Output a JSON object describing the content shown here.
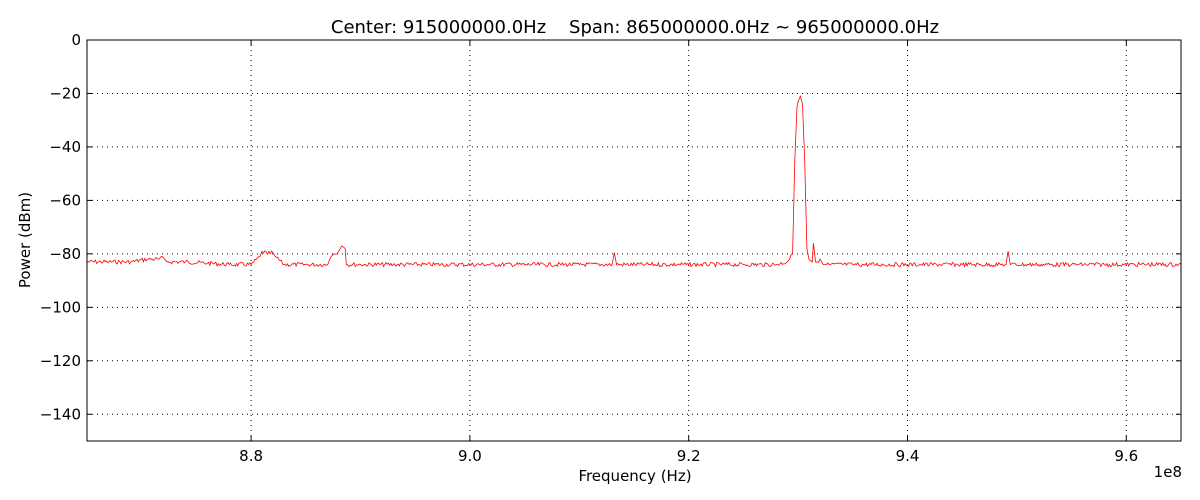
{
  "chart_data": {
    "type": "line",
    "title": "Center: 915000000.0Hz    Span: 865000000.0Hz ~ 965000000.0Hz",
    "xlabel": "Frequency (Hz)",
    "ylabel": "Power (dBm)",
    "x_offset_label": "1e8",
    "xlim": [
      865000000,
      965000000
    ],
    "ylim": [
      -150,
      0
    ],
    "x_ticks": [
      880000000,
      900000000,
      920000000,
      940000000,
      960000000
    ],
    "x_tick_labels": [
      "8.8",
      "9.0",
      "9.2",
      "9.4",
      "9.6"
    ],
    "y_ticks": [
      0,
      -20,
      -40,
      -60,
      -80,
      -100,
      -120,
      -140
    ],
    "y_tick_labels": [
      "0",
      "−20",
      "−40",
      "−60",
      "−80",
      "−100",
      "−120",
      "−140"
    ],
    "grid": true,
    "grid_style": "dotted",
    "line_color": "#ff0000",
    "series": [
      {
        "x": [
          865000000,
          867000000,
          869000000,
          870500000,
          871500000,
          872000000,
          872300000,
          874000000,
          876000000,
          878000000,
          880000000,
          880800000,
          881000000,
          881500000,
          882000000,
          882200000,
          883000000,
          885000000,
          887000000,
          887300000,
          887600000,
          888000000,
          888300000,
          888600000,
          888700000,
          890000000,
          893000000,
          896000000,
          900000000,
          905000000,
          910000000,
          913000000,
          913200000,
          913400000,
          916000000,
          920000000,
          925000000,
          928000000,
          929000000,
          929500000,
          929700000,
          929900000,
          930000000,
          930200000,
          930400000,
          930600000,
          930800000,
          931000000,
          931300000,
          931400000,
          931600000,
          932000000,
          932300000,
          932600000,
          935000000,
          940000000,
          945000000,
          949000000,
          949200000,
          949400000,
          952000000,
          955000000,
          960000000,
          965000000
        ],
        "y": [
          -83,
          -83,
          -83,
          -82,
          -82,
          -81.5,
          -83,
          -83,
          -83.5,
          -84,
          -84,
          -81,
          -79,
          -80,
          -79.5,
          -81,
          -84,
          -84,
          -84,
          -81,
          -80,
          -79,
          -77,
          -78,
          -84,
          -84,
          -84,
          -84,
          -84,
          -84,
          -84,
          -84,
          -79.5,
          -84,
          -84,
          -84,
          -84,
          -84,
          -83,
          -80,
          -45,
          -25,
          -23,
          -21,
          -24,
          -45,
          -78,
          -82,
          -83,
          -76,
          -83,
          -82,
          -84,
          -84,
          -84,
          -84,
          -84,
          -84,
          -79,
          -84,
          -84,
          -84,
          -84,
          -84
        ]
      }
    ]
  }
}
